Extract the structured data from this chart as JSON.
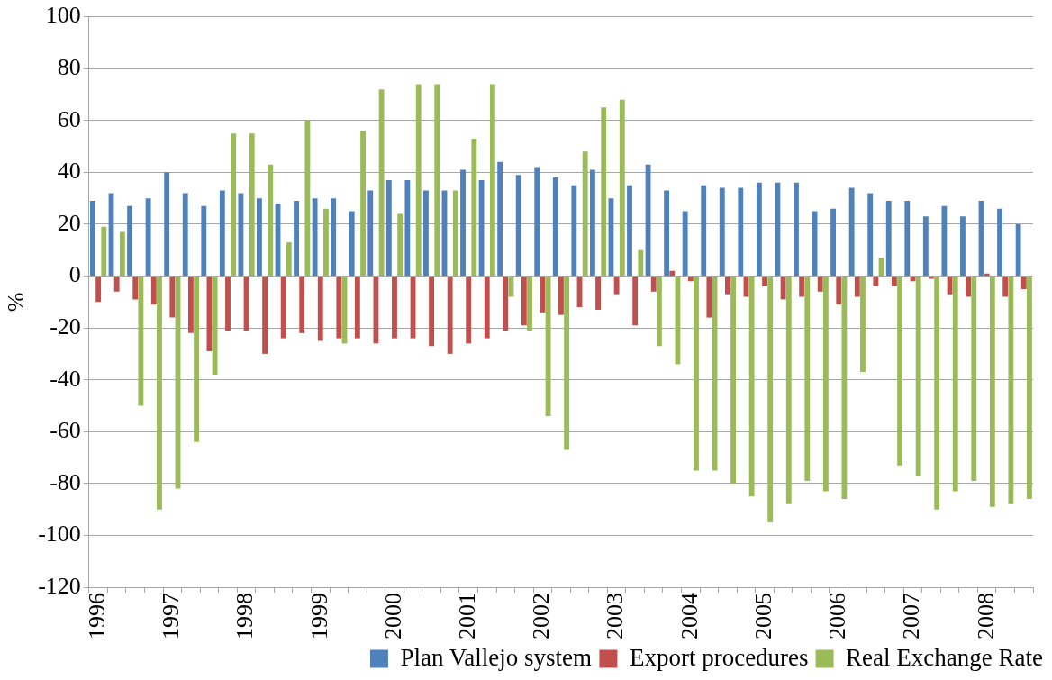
{
  "chart_data": {
    "type": "bar",
    "ylabel": "%",
    "categories": [
      "1996",
      null,
      null,
      null,
      "1997",
      null,
      null,
      null,
      "1998",
      null,
      null,
      null,
      "1999",
      null,
      null,
      null,
      "2000",
      null,
      null,
      null,
      "2001",
      null,
      null,
      null,
      "2002",
      null,
      null,
      null,
      "2003",
      null,
      null,
      null,
      "2004",
      null,
      null,
      null,
      "2005",
      null,
      null,
      null,
      "2006",
      null,
      null,
      null,
      "2007",
      null,
      null,
      null,
      "2008",
      null,
      null
    ],
    "series": [
      {
        "name": "Plan Vallejo system",
        "color": "#4f81bd",
        "values": [
          29,
          32,
          27,
          30,
          40,
          32,
          27,
          33,
          32,
          30,
          28,
          29,
          30,
          30,
          25,
          33,
          37,
          37,
          33,
          33,
          41,
          37,
          44,
          39,
          42,
          38,
          35,
          41,
          30,
          35,
          43,
          33,
          25,
          35,
          34,
          34,
          36,
          36,
          36,
          25,
          26,
          34,
          32,
          29,
          29,
          23,
          27,
          23,
          29,
          26,
          20
        ]
      },
      {
        "name": "Export procedures",
        "color": "#c0504d",
        "values": [
          -10,
          -6,
          -9,
          -11,
          -16,
          -22,
          -29,
          -21,
          -21,
          -30,
          -24,
          -22,
          -25,
          -24,
          -24,
          -26,
          -24,
          -24,
          -27,
          -30,
          -26,
          -24,
          -21,
          -19,
          -14,
          -15,
          -12,
          -13,
          -7,
          -19,
          -6,
          2,
          -2,
          -16,
          -7,
          -8,
          -4,
          -9,
          -8,
          -6,
          -11,
          -8,
          -4,
          -4,
          -2,
          -1,
          -7,
          -8,
          1,
          -8,
          -5
        ]
      },
      {
        "name": "Real Exchange Rate",
        "color": "#9bbb59",
        "values": [
          19,
          17,
          -50,
          -90,
          -82,
          -64,
          -38,
          55,
          55,
          43,
          13,
          60,
          26,
          -26,
          56,
          72,
          24,
          74,
          74,
          33,
          53,
          74,
          -8,
          -21,
          -54,
          -67,
          48,
          65,
          68,
          10,
          -27,
          -34,
          -75,
          -75,
          -80,
          -85,
          -95,
          -88,
          -79,
          -83,
          -86,
          -37,
          7,
          -73,
          -77,
          -90,
          -83,
          -79,
          -89,
          -88,
          -86
        ]
      }
    ],
    "ylim": [
      -120,
      100
    ],
    "yticks": [
      -120,
      -100,
      -80,
      -60,
      -40,
      -20,
      0,
      20,
      40,
      60,
      80,
      100
    ],
    "grid": "y",
    "legend": "bottom"
  }
}
